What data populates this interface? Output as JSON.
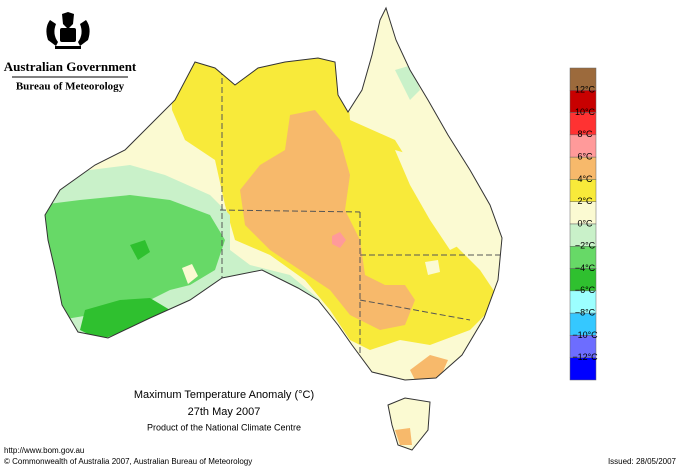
{
  "header": {
    "government": "Australian Government",
    "bureau": "Bureau of Meteorology"
  },
  "map_title": {
    "title": "Maximum Temperature Anomaly (°C)",
    "date": "27th May 2007",
    "credit": "Product of the National Climate Centre"
  },
  "footer": {
    "url": "http://www.bom.gov.au",
    "copyright": "© Commonwealth of Australia 2007, Australian Bureau of Meteorology",
    "issued": "Issued: 28/05/2007"
  },
  "legend": {
    "labels": [
      "12°C",
      "10°C",
      "8°C",
      "6°C",
      "4°C",
      "2°C",
      "0°C",
      "−2°C",
      "−4°C",
      "−6°C",
      "−8°C",
      "−10°C",
      "−12°C"
    ],
    "colors": [
      "#9c6a3c",
      "#c80000",
      "#ff3232",
      "#ff9a9a",
      "#f7b96b",
      "#f8ea3a",
      "#fbfad2",
      "#c9f1c9",
      "#67d967",
      "#2fc02f",
      "#9cffff",
      "#35c8ff",
      "#6d6dff",
      "#0000ff"
    ]
  }
}
